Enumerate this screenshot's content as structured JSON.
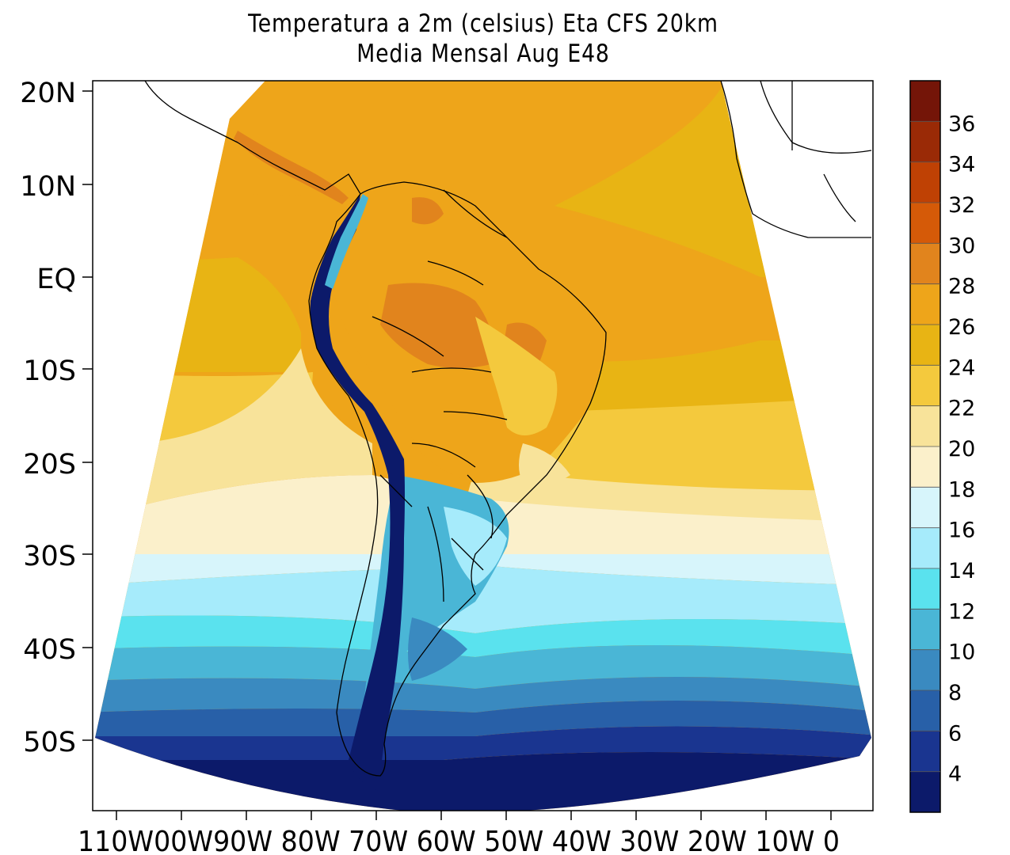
{
  "title": {
    "line1": "Temperatura a 2m (celsius) Eta CFS 20km",
    "line2": "Media Mensal Aug  E48"
  },
  "map": {
    "lat_labels": [
      "20N",
      "10N",
      "EQ",
      "10S",
      "20S",
      "30S",
      "40S",
      "50S"
    ],
    "lon_labels": [
      "110W",
      "100W",
      "90W",
      "80W",
      "70W",
      "60W",
      "50W",
      "40W",
      "30W",
      "20W",
      "10W",
      "0"
    ],
    "lon_label_text": "110W00W90W 80W 70W 60W 50W 40W 30W 20W 10W  0"
  },
  "colorbar": {
    "labels": [
      "36",
      "34",
      "32",
      "30",
      "28",
      "26",
      "24",
      "22",
      "20",
      "18",
      "16",
      "14",
      "12",
      "10",
      "8",
      "6",
      "4"
    ],
    "colors": [
      "#741508",
      "#9a2a06",
      "#bf4104",
      "#d55a08",
      "#e1841d",
      "#eea51a",
      "#e8b414",
      "#f4c93d",
      "#f8e39a",
      "#fbf0cb",
      "#d7f5fb",
      "#a6ebfb",
      "#5ae2ee",
      "#4ab6d6",
      "#3a8ac0",
      "#2860a8",
      "#1a3590",
      "#0c1a6a"
    ]
  }
}
